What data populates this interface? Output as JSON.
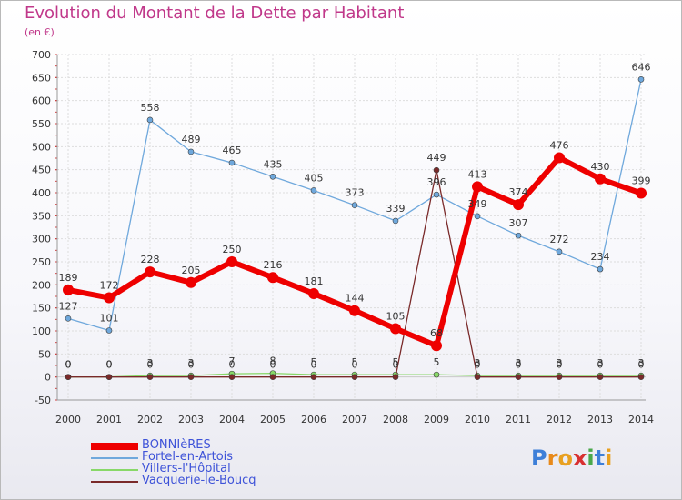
{
  "title": "Evolution du Montant de la Dette par Habitant",
  "unit": "(en €)",
  "logo_text": "Proxiti",
  "chart_data": {
    "type": "line",
    "title": "Evolution du Montant de la Dette par Habitant",
    "ylabel": "(en €)",
    "xlabel": "",
    "ylim": [
      -50,
      700
    ],
    "yticks": [
      -50,
      0,
      50,
      100,
      150,
      200,
      250,
      300,
      350,
      400,
      450,
      500,
      550,
      600,
      650,
      700
    ],
    "grid": true,
    "legend_position": "bottom-left",
    "categories": [
      "2000",
      "2001",
      "2002",
      "2003",
      "2004",
      "2005",
      "2006",
      "2007",
      "2008",
      "2009",
      "2010",
      "2011",
      "2012",
      "2013",
      "2014"
    ],
    "series": [
      {
        "name": "BONNIèRES",
        "color": "#ee0000",
        "values": [
          189,
          172,
          228,
          205,
          250,
          216,
          181,
          144,
          105,
          68,
          413,
          374,
          476,
          430,
          399
        ]
      },
      {
        "name": "Fortel-en-Artois",
        "color": "#6fa8dc",
        "values": [
          127,
          101,
          558,
          489,
          465,
          435,
          405,
          373,
          339,
          396,
          349,
          307,
          272,
          234,
          646
        ]
      },
      {
        "name": "Villers-l'Hôpital",
        "color": "#88d868",
        "values": [
          0,
          0,
          3,
          3,
          7,
          8,
          5,
          5,
          5,
          5,
          3,
          3,
          3,
          3,
          3
        ]
      },
      {
        "name": "Vacquerie-le-Boucq",
        "color": "#7a2a2a",
        "values": [
          0,
          0,
          0,
          0,
          0,
          0,
          0,
          0,
          0,
          449,
          0,
          0,
          0,
          0,
          0
        ]
      }
    ]
  }
}
